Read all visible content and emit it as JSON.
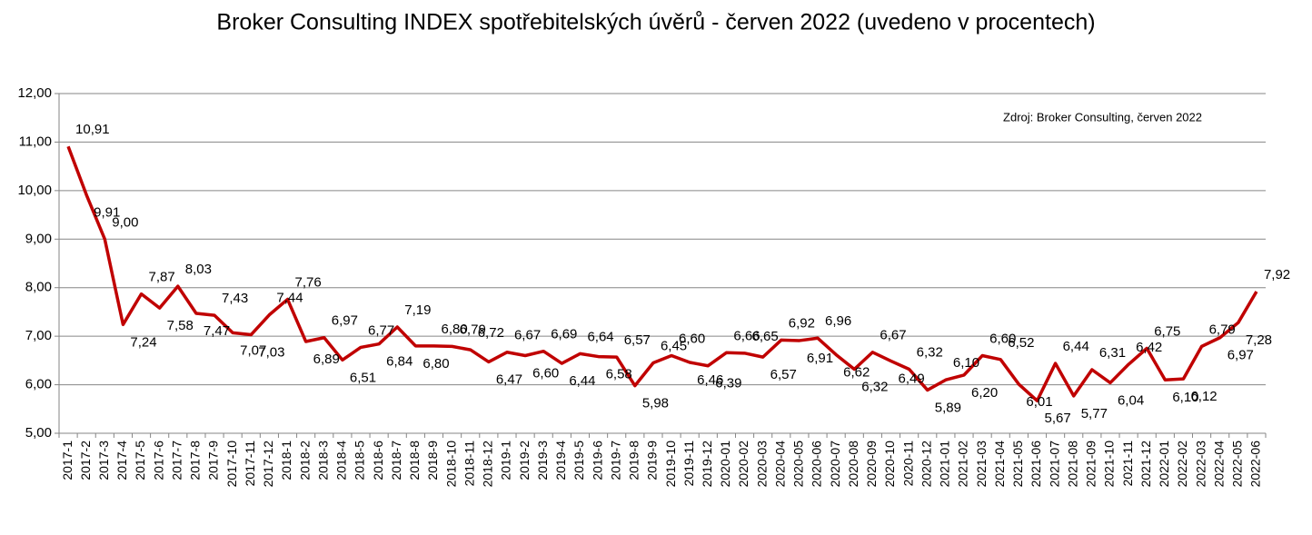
{
  "chart_data": {
    "type": "line",
    "title": "Broker Consulting INDEX spotřebitelských úvěrů - červen 2022 (uvedeno v procentech)",
    "annotation": "Zdroj: Broker Consulting, červen 2022",
    "categories": [
      "2017-1",
      "2017-2",
      "2017-3",
      "2017-4",
      "2017-5",
      "2017-6",
      "2017-7",
      "2017-8",
      "2017-9",
      "2017-10",
      "2017-11",
      "2017-12",
      "2018-1",
      "2018-2",
      "2018-3",
      "2018-4",
      "2018-5",
      "2018-6",
      "2018-7",
      "2018-8",
      "2018-9",
      "2018-10",
      "2018-11",
      "2018-12",
      "2019-1",
      "2019-2",
      "2019-3",
      "2019-4",
      "2019-5",
      "2019-6",
      "2019-7",
      "2019-8",
      "2019-9",
      "2019-10",
      "2019-11",
      "2019-12",
      "2020-01",
      "2020-02",
      "2020-03",
      "2020-04",
      "2020-05",
      "2020-06",
      "2020-07",
      "2020-08",
      "2020-09",
      "2020-10",
      "2020-11",
      "2020-12",
      "2021-01",
      "2021-02",
      "2021-03",
      "2021-04",
      "2021-05",
      "2021-06",
      "2021-07",
      "2021-08",
      "2021-09",
      "2021-10",
      "2021-11",
      "2021-12",
      "2022-01",
      "2022-02",
      "2022-03",
      "2022-04",
      "2022-05",
      "2022-06"
    ],
    "values": [
      10.91,
      9.91,
      9.0,
      7.24,
      7.87,
      7.58,
      8.03,
      7.47,
      7.43,
      7.07,
      7.03,
      7.44,
      7.76,
      6.89,
      6.97,
      6.51,
      6.77,
      6.84,
      7.19,
      6.8,
      6.8,
      6.79,
      6.72,
      6.47,
      6.67,
      6.6,
      6.69,
      6.44,
      6.64,
      6.58,
      6.57,
      5.98,
      6.45,
      6.6,
      6.46,
      6.39,
      6.66,
      6.65,
      6.57,
      6.92,
      6.91,
      6.96,
      6.62,
      6.32,
      6.67,
      6.49,
      6.32,
      5.89,
      6.1,
      6.2,
      6.6,
      6.52,
      6.01,
      5.67,
      6.44,
      5.77,
      6.31,
      6.04,
      6.42,
      6.75,
      6.1,
      6.12,
      6.79,
      6.97,
      7.28,
      7.92
    ],
    "value_labels": [
      "10,91",
      "9,91",
      "9,00",
      "7,24",
      "7,87",
      "7,58",
      "8,03",
      "7,47",
      "7,43",
      "7,07",
      "7,03",
      "7,44",
      "7,76",
      "6,89",
      "6,97",
      "6,51",
      "6,77",
      "6,84",
      "7,19",
      "6,80",
      "6,80",
      "6,79",
      "6,72",
      "6,47",
      "6,67",
      "6,60",
      "6,69",
      "6,44",
      "6,64",
      "6,58",
      "6,57",
      "5,98",
      "6,45",
      "6,60",
      "6,46",
      "6,39",
      "6,66",
      "6,65",
      "6,57",
      "6,92",
      "6,91",
      "6,96",
      "6,62",
      "6,32",
      "6,67",
      "6,49",
      "6,32",
      "5,89",
      "6,10",
      "6,20",
      "6,60",
      "6,52",
      "6,01",
      "5,67",
      "6,44",
      "5,77",
      "6,31",
      "6,04",
      "6,42",
      "6,75",
      "6,10",
      "6,12",
      "6,79",
      "6,97",
      "7,28",
      "7,92"
    ],
    "color": "#c00000",
    "ylim": [
      5,
      12
    ],
    "yticks": [
      {
        "value": 5,
        "label": "5,00"
      },
      {
        "value": 6,
        "label": "6,00"
      },
      {
        "value": 7,
        "label": "7,00"
      },
      {
        "value": 8,
        "label": "8,00"
      },
      {
        "value": 9,
        "label": "9,00"
      },
      {
        "value": 10,
        "label": "10,00"
      },
      {
        "value": 11,
        "label": "11,00"
      },
      {
        "value": 12,
        "label": "12,00"
      }
    ],
    "grid": true
  }
}
